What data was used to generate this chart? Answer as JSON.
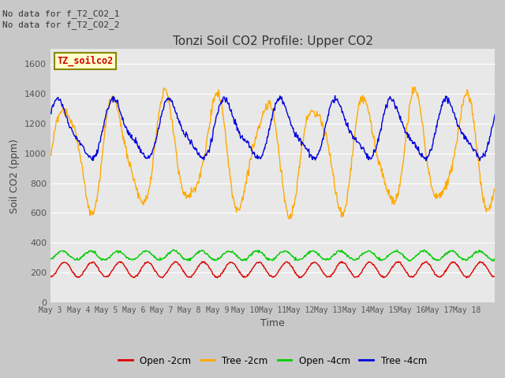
{
  "title": "Tonzi Soil CO2 Profile: Upper CO2",
  "xlabel": "Time",
  "ylabel": "Soil CO2 (ppm)",
  "ylim": [
    0,
    1700
  ],
  "yticks": [
    0,
    200,
    400,
    600,
    800,
    1000,
    1200,
    1400,
    1600
  ],
  "annotation1": "No data for f_T2_CO2_1",
  "annotation2": "No data for f_T2_CO2_2",
  "legend_box_label": "TZ_soilco2",
  "fig_facecolor": "#c8c8c8",
  "ax_facecolor": "#e8e8e8",
  "colors": {
    "open_2cm": "#dd0000",
    "tree_2cm": "#ffaa00",
    "open_4cm": "#00cc00",
    "tree_4cm": "#0000dd"
  },
  "xtick_labels": [
    "May 3",
    "May 4",
    "May 5",
    "May 6",
    "May 7",
    "May 8",
    "May 9",
    "May 10",
    "May 11",
    "May 12",
    "May 13",
    "May 14",
    "May 15",
    "May 16",
    "May 17",
    "May 18"
  ],
  "n_days": 16
}
